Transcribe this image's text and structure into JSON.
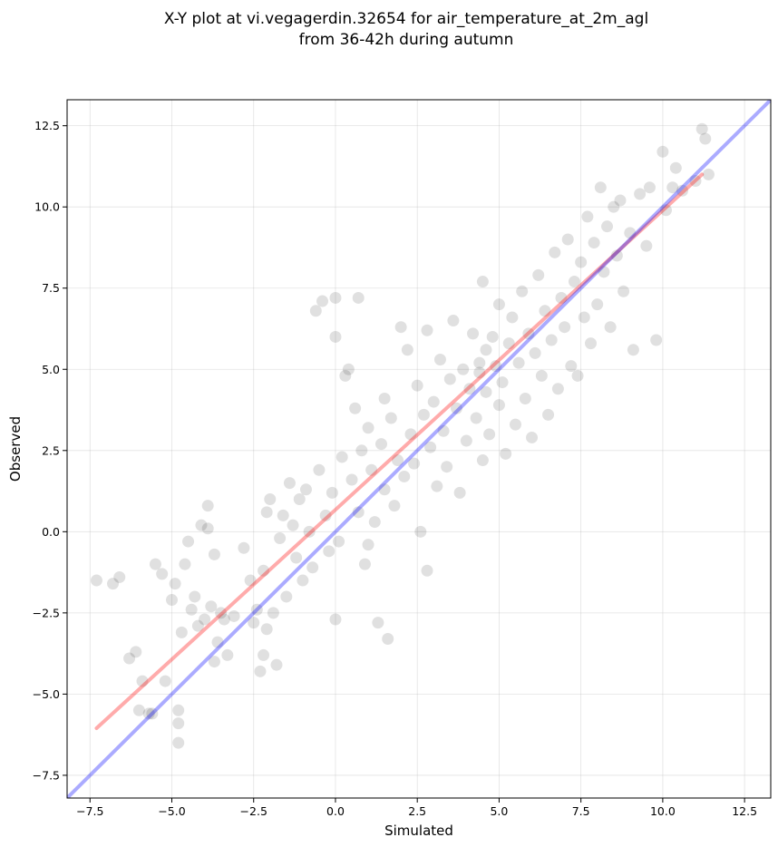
{
  "chart_data": {
    "type": "scatter",
    "title_lines": [
      "X-Y plot at vi.vegagerdin.32654 for air_temperature_at_2m_agl",
      "from 36-42h during autumn"
    ],
    "xlabel": "Simulated",
    "ylabel": "Observed",
    "xlim": [
      -8.2,
      13.3
    ],
    "ylim": [
      -8.2,
      13.3
    ],
    "x_ticks": [
      -7.5,
      -5.0,
      -2.5,
      0.0,
      2.5,
      5.0,
      7.5,
      10.0,
      12.5
    ],
    "y_ticks": [
      -7.5,
      -5.0,
      -2.5,
      0.0,
      2.5,
      5.0,
      7.5,
      10.0,
      12.5
    ],
    "x_tick_labels": [
      "−7.5",
      "−5.0",
      "−2.5",
      "0.0",
      "2.5",
      "5.0",
      "7.5",
      "10.0",
      "12.5"
    ],
    "y_tick_labels": [
      "−7.5",
      "−5.0",
      "−2.5",
      "0.0",
      "2.5",
      "5.0",
      "7.5",
      "10.0",
      "12.5"
    ],
    "grid": true,
    "marker_color": "#000000",
    "marker_alpha": 0.12,
    "points": [
      [
        -7.3,
        -1.5
      ],
      [
        -6.8,
        -1.6
      ],
      [
        -6.6,
        -1.4
      ],
      [
        -6.3,
        -3.9
      ],
      [
        -6.1,
        -3.7
      ],
      [
        -6.0,
        -5.5
      ],
      [
        -5.9,
        -4.6
      ],
      [
        -5.7,
        -5.6
      ],
      [
        -5.6,
        -5.6
      ],
      [
        -5.5,
        -1.0
      ],
      [
        -5.3,
        -1.3
      ],
      [
        -5.2,
        -4.6
      ],
      [
        -5.0,
        -2.1
      ],
      [
        -4.9,
        -1.6
      ],
      [
        -4.8,
        -6.5
      ],
      [
        -4.8,
        -5.9
      ],
      [
        -4.8,
        -5.5
      ],
      [
        -4.7,
        -3.1
      ],
      [
        -4.6,
        -1.0
      ],
      [
        -4.5,
        -0.3
      ],
      [
        -4.4,
        -2.4
      ],
      [
        -4.3,
        -2.0
      ],
      [
        -4.2,
        -2.9
      ],
      [
        -4.1,
        0.2
      ],
      [
        -4.0,
        -2.7
      ],
      [
        -3.9,
        0.1
      ],
      [
        -3.9,
        0.8
      ],
      [
        -3.8,
        -2.3
      ],
      [
        -3.7,
        -4.0
      ],
      [
        -3.7,
        -0.7
      ],
      [
        -3.6,
        -3.4
      ],
      [
        -3.5,
        -2.5
      ],
      [
        -3.4,
        -2.7
      ],
      [
        -3.3,
        -3.8
      ],
      [
        -3.1,
        -2.6
      ],
      [
        -2.8,
        -0.5
      ],
      [
        -2.6,
        -1.5
      ],
      [
        -2.5,
        -2.8
      ],
      [
        -2.4,
        -2.4
      ],
      [
        -2.3,
        -4.3
      ],
      [
        -2.2,
        -3.8
      ],
      [
        -2.2,
        -1.2
      ],
      [
        -2.1,
        0.6
      ],
      [
        -2.1,
        -3.0
      ],
      [
        -2.0,
        1.0
      ],
      [
        -1.9,
        -2.5
      ],
      [
        -1.8,
        -4.1
      ],
      [
        -1.7,
        -0.2
      ],
      [
        -1.6,
        0.5
      ],
      [
        -1.5,
        -2.0
      ],
      [
        -1.4,
        1.5
      ],
      [
        -1.3,
        0.2
      ],
      [
        -1.2,
        -0.8
      ],
      [
        -1.1,
        1.0
      ],
      [
        -1.0,
        -1.5
      ],
      [
        -0.9,
        1.3
      ],
      [
        -0.8,
        0.0
      ],
      [
        -0.7,
        -1.1
      ],
      [
        -0.6,
        6.8
      ],
      [
        -0.5,
        1.9
      ],
      [
        -0.4,
        7.1
      ],
      [
        -0.3,
        0.5
      ],
      [
        -0.2,
        -0.6
      ],
      [
        -0.1,
        1.2
      ],
      [
        0.0,
        7.2
      ],
      [
        0.0,
        6.0
      ],
      [
        0.0,
        -2.7
      ],
      [
        0.1,
        -0.3
      ],
      [
        0.2,
        2.3
      ],
      [
        0.3,
        4.8
      ],
      [
        0.4,
        5.0
      ],
      [
        0.5,
        1.6
      ],
      [
        0.6,
        3.8
      ],
      [
        0.7,
        0.6
      ],
      [
        0.7,
        7.2
      ],
      [
        0.8,
        2.5
      ],
      [
        0.9,
        -1.0
      ],
      [
        1.0,
        3.2
      ],
      [
        1.0,
        -0.4
      ],
      [
        1.1,
        1.9
      ],
      [
        1.2,
        0.3
      ],
      [
        1.3,
        -2.8
      ],
      [
        1.4,
        2.7
      ],
      [
        1.5,
        1.3
      ],
      [
        1.5,
        4.1
      ],
      [
        1.6,
        -3.3
      ],
      [
        1.7,
        3.5
      ],
      [
        1.8,
        0.8
      ],
      [
        1.9,
        2.2
      ],
      [
        2.0,
        6.3
      ],
      [
        2.1,
        1.7
      ],
      [
        2.2,
        5.6
      ],
      [
        2.3,
        3.0
      ],
      [
        2.4,
        2.1
      ],
      [
        2.5,
        4.5
      ],
      [
        2.6,
        0.0
      ],
      [
        2.7,
        3.6
      ],
      [
        2.8,
        6.2
      ],
      [
        2.8,
        -1.2
      ],
      [
        2.9,
        2.6
      ],
      [
        3.0,
        4.0
      ],
      [
        3.1,
        1.4
      ],
      [
        3.2,
        5.3
      ],
      [
        3.3,
        3.1
      ],
      [
        3.4,
        2.0
      ],
      [
        3.5,
        4.7
      ],
      [
        3.6,
        6.5
      ],
      [
        3.7,
        3.8
      ],
      [
        3.8,
        1.2
      ],
      [
        3.9,
        5.0
      ],
      [
        4.0,
        2.8
      ],
      [
        4.1,
        4.4
      ],
      [
        4.2,
        6.1
      ],
      [
        4.3,
        3.5
      ],
      [
        4.4,
        5.2
      ],
      [
        4.4,
        4.9
      ],
      [
        4.5,
        7.7
      ],
      [
        4.5,
        2.2
      ],
      [
        4.6,
        5.6
      ],
      [
        4.6,
        4.3
      ],
      [
        4.7,
        3.0
      ],
      [
        4.8,
        6.0
      ],
      [
        4.9,
        5.1
      ],
      [
        5.0,
        3.9
      ],
      [
        5.0,
        7.0
      ],
      [
        5.1,
        4.6
      ],
      [
        5.2,
        2.4
      ],
      [
        5.3,
        5.8
      ],
      [
        5.4,
        6.6
      ],
      [
        5.5,
        3.3
      ],
      [
        5.6,
        5.2
      ],
      [
        5.7,
        7.4
      ],
      [
        5.8,
        4.1
      ],
      [
        5.9,
        6.1
      ],
      [
        6.0,
        2.9
      ],
      [
        6.1,
        5.5
      ],
      [
        6.2,
        7.9
      ],
      [
        6.3,
        4.8
      ],
      [
        6.4,
        6.8
      ],
      [
        6.5,
        3.6
      ],
      [
        6.6,
        5.9
      ],
      [
        6.7,
        8.6
      ],
      [
        6.8,
        4.4
      ],
      [
        6.9,
        7.2
      ],
      [
        7.0,
        6.3
      ],
      [
        7.1,
        9.0
      ],
      [
        7.2,
        5.1
      ],
      [
        7.3,
        7.7
      ],
      [
        7.4,
        4.8
      ],
      [
        7.5,
        8.3
      ],
      [
        7.6,
        6.6
      ],
      [
        7.7,
        9.7
      ],
      [
        7.8,
        5.8
      ],
      [
        7.9,
        8.9
      ],
      [
        8.0,
        7.0
      ],
      [
        8.1,
        10.6
      ],
      [
        8.2,
        8.0
      ],
      [
        8.3,
        9.4
      ],
      [
        8.4,
        6.3
      ],
      [
        8.5,
        10.0
      ],
      [
        8.6,
        8.5
      ],
      [
        8.7,
        10.2
      ],
      [
        8.8,
        7.4
      ],
      [
        9.0,
        9.2
      ],
      [
        9.1,
        5.6
      ],
      [
        9.3,
        10.4
      ],
      [
        9.5,
        8.8
      ],
      [
        9.6,
        10.6
      ],
      [
        9.8,
        5.9
      ],
      [
        10.0,
        11.7
      ],
      [
        10.1,
        9.9
      ],
      [
        10.3,
        10.6
      ],
      [
        10.4,
        11.2
      ],
      [
        10.6,
        10.5
      ],
      [
        11.0,
        10.8
      ],
      [
        11.2,
        12.4
      ],
      [
        11.3,
        12.1
      ],
      [
        11.4,
        11.0
      ]
    ],
    "lines": [
      {
        "name": "",
        "color": "#ff0000",
        "alpha": 0.33,
        "points": [
          [
            -7.3,
            -6.05
          ],
          [
            11.2,
            11.0
          ]
        ]
      },
      {
        "name": "",
        "color": "#0000ff",
        "alpha": 0.33,
        "points": [
          [
            -8.2,
            -8.2
          ],
          [
            13.3,
            13.3
          ]
        ]
      }
    ]
  }
}
